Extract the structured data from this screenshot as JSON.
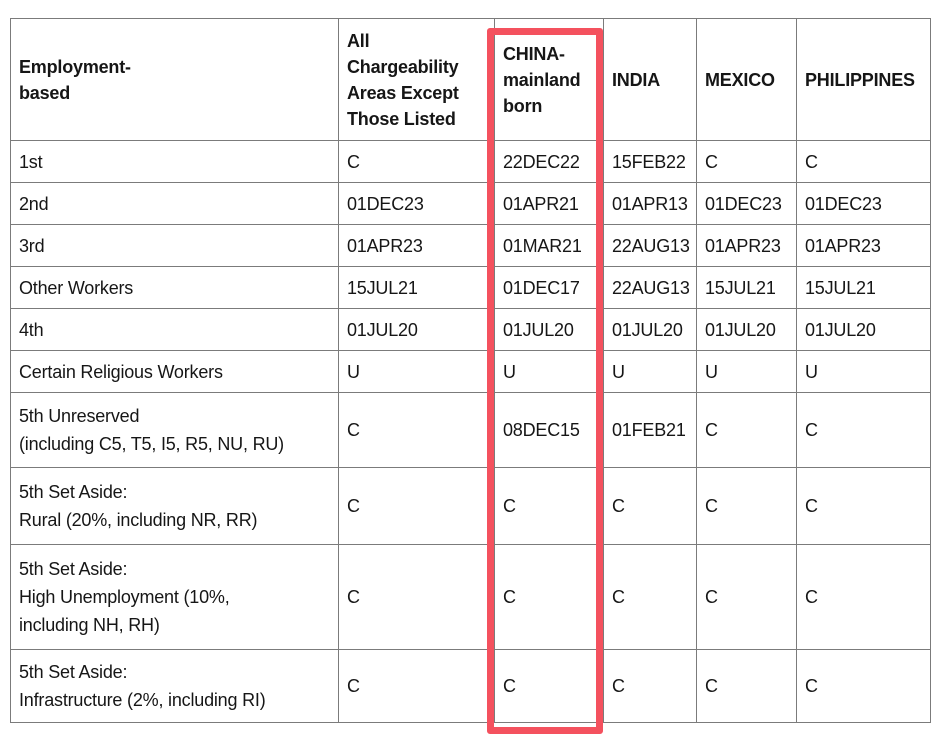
{
  "colors": {
    "highlight": "#f4515e",
    "grid": "#7b7b7b",
    "text": "#161616"
  },
  "table": {
    "header": [
      {
        "id": "category",
        "lines": [
          "Employment-",
          "based"
        ]
      },
      {
        "id": "all-areas",
        "lines": [
          "All",
          "Chargeability",
          "Areas Except",
          "Those Listed"
        ]
      },
      {
        "id": "china",
        "lines": [
          "CHINA-",
          "mainland",
          "born"
        ],
        "highlighted": true
      },
      {
        "id": "india",
        "lines": [
          "INDIA"
        ]
      },
      {
        "id": "mexico",
        "lines": [
          "MEXICO"
        ]
      },
      {
        "id": "philippines",
        "lines": [
          "PHILIPPINES"
        ]
      }
    ],
    "rows": [
      {
        "label_lines": [
          "1st"
        ],
        "values": [
          "C",
          "22DEC22",
          "15FEB22",
          "C",
          "C"
        ]
      },
      {
        "label_lines": [
          "2nd"
        ],
        "values": [
          "01DEC23",
          "01APR21",
          "01APR13",
          "01DEC23",
          "01DEC23"
        ]
      },
      {
        "label_lines": [
          "3rd"
        ],
        "values": [
          "01APR23",
          "01MAR21",
          "22AUG13",
          "01APR23",
          "01APR23"
        ]
      },
      {
        "label_lines": [
          "Other Workers"
        ],
        "values": [
          "15JUL21",
          "01DEC17",
          "22AUG13",
          "15JUL21",
          "15JUL21"
        ]
      },
      {
        "label_lines": [
          "4th"
        ],
        "values": [
          "01JUL20",
          "01JUL20",
          "01JUL20",
          "01JUL20",
          "01JUL20"
        ]
      },
      {
        "label_lines": [
          "Certain Religious Workers"
        ],
        "values": [
          "U",
          "U",
          "U",
          "U",
          "U"
        ]
      },
      {
        "label_lines": [
          "5th Unreserved",
          "(including C5, T5, I5, R5, NU, RU)"
        ],
        "values": [
          "C",
          "08DEC15",
          "01FEB21",
          "C",
          "C"
        ]
      },
      {
        "label_lines": [
          "5th Set Aside:",
          "Rural (20%, including NR, RR)"
        ],
        "values": [
          "C",
          "C",
          "C",
          "C",
          "C"
        ]
      },
      {
        "label_lines": [
          "5th Set Aside:",
          "High Unemployment (10%,",
          "including NH, RH)"
        ],
        "values": [
          "C",
          "C",
          "C",
          "C",
          "C"
        ]
      },
      {
        "label_lines": [
          "5th Set Aside:",
          "Infrastructure (2%, including RI)"
        ],
        "values": [
          "C",
          "C",
          "C",
          "C",
          "C"
        ]
      }
    ]
  }
}
